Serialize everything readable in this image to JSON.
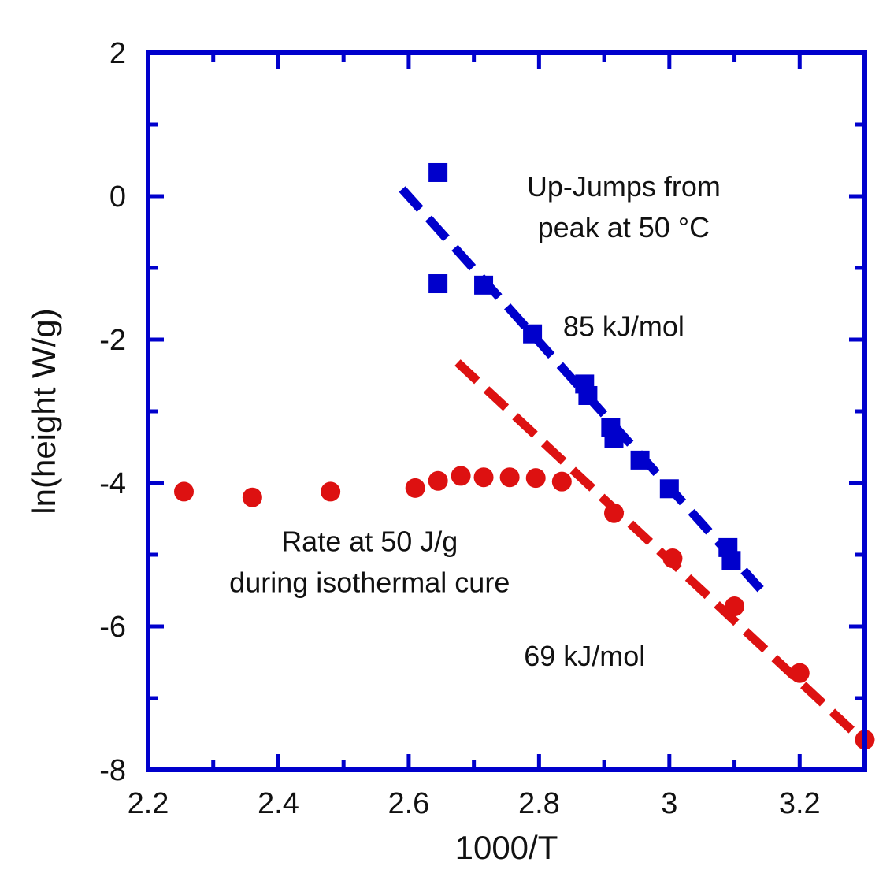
{
  "chart_data": {
    "type": "scatter",
    "title": "",
    "xlabel": "1000/T",
    "ylabel": "ln(height W/g)",
    "xlim": [
      2.2,
      3.3
    ],
    "ylim": [
      -8,
      2
    ],
    "x_ticks": [
      2.2,
      2.4,
      2.6,
      2.8,
      3,
      3.2
    ],
    "x_tick_labels": [
      "2.2",
      "2.4",
      "2.6",
      "2.8",
      "3",
      "3.2"
    ],
    "y_ticks": [
      -8,
      -6,
      -4,
      -2,
      0,
      2
    ],
    "y_tick_labels": [
      "-8",
      "-6",
      "-4",
      "-2",
      "0",
      "2"
    ],
    "grid": false,
    "frame_color": "#0000cc",
    "series": [
      {
        "marker": "square",
        "color": "#0000cc",
        "points": [
          [
            2.645,
            0.33
          ],
          [
            2.645,
            -1.22
          ],
          [
            2.715,
            -1.24
          ],
          [
            2.79,
            -1.92
          ],
          [
            2.87,
            -2.62
          ],
          [
            2.875,
            -2.78
          ],
          [
            2.91,
            -3.22
          ],
          [
            2.915,
            -3.38
          ],
          [
            2.955,
            -3.68
          ],
          [
            3.0,
            -4.08
          ],
          [
            3.09,
            -4.9
          ],
          [
            3.095,
            -5.08
          ]
        ]
      },
      {
        "marker": "circle",
        "color": "#dd1111",
        "points": [
          [
            2.255,
            -4.12
          ],
          [
            2.36,
            -4.2
          ],
          [
            2.48,
            -4.12
          ],
          [
            2.61,
            -4.07
          ],
          [
            2.645,
            -3.97
          ],
          [
            2.68,
            -3.9
          ],
          [
            2.715,
            -3.92
          ],
          [
            2.755,
            -3.92
          ],
          [
            2.795,
            -3.93
          ],
          [
            2.835,
            -3.98
          ],
          [
            2.915,
            -4.42
          ],
          [
            3.005,
            -5.05
          ],
          [
            3.1,
            -5.72
          ],
          [
            3.2,
            -6.65
          ],
          [
            3.3,
            -7.58
          ]
        ]
      }
    ],
    "fit_lines": [
      {
        "color": "#0000cc",
        "x": [
          2.59,
          3.14
        ],
        "y": [
          0.1,
          -5.48
        ]
      },
      {
        "color": "#dd1111",
        "x": [
          2.675,
          3.305
        ],
        "y": [
          -2.32,
          -7.66
        ]
      }
    ],
    "annotations": [
      {
        "lines": [
          "Up-Jumps from",
          "peak at 50 °C"
        ],
        "x": 2.93,
        "y": 0.0
      },
      {
        "lines": [
          "85 kJ/mol"
        ],
        "x": 2.93,
        "y": -1.95
      },
      {
        "lines": [
          "Rate at 50 J/g",
          "during isothermal cure"
        ],
        "x": 2.54,
        "y": -4.95
      },
      {
        "lines": [
          "69 kJ/mol"
        ],
        "x": 2.87,
        "y": -6.55
      }
    ]
  }
}
